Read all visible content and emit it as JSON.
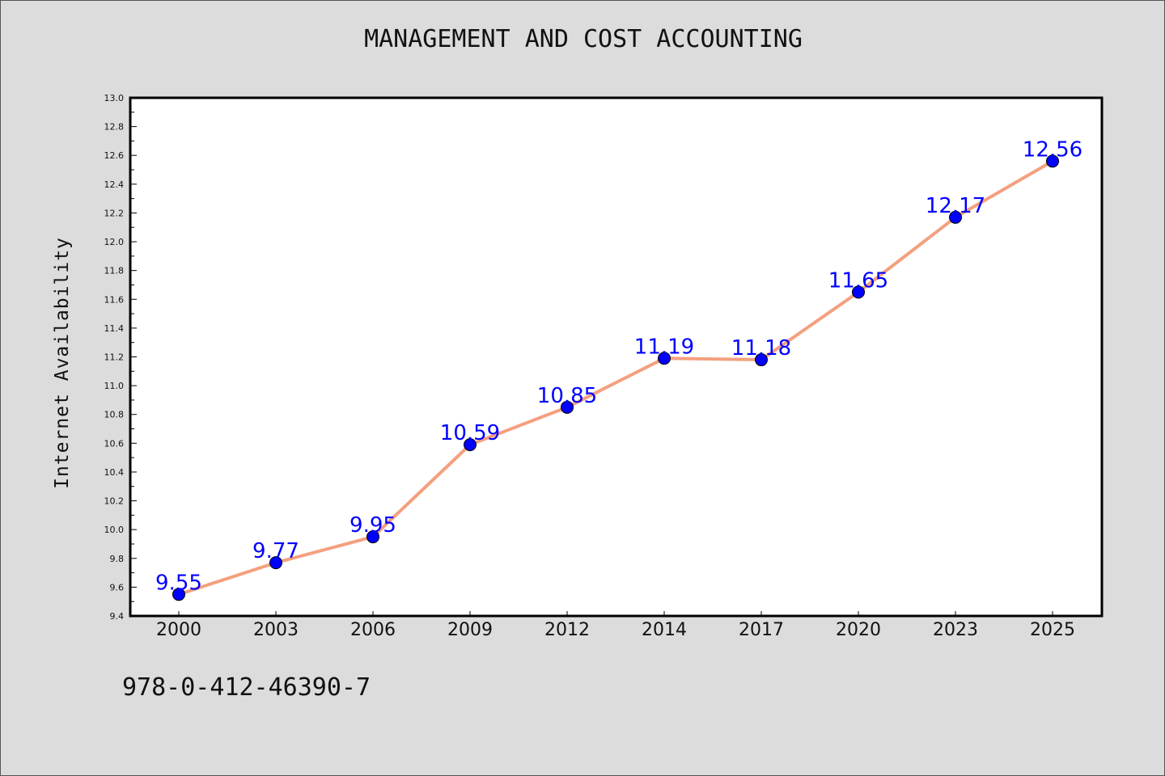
{
  "chart_data": {
    "type": "line",
    "title": "MANAGEMENT AND COST ACCOUNTING",
    "ylabel": "Internet Availability",
    "xlabel": "",
    "categories": [
      "2000",
      "2003",
      "2006",
      "2009",
      "2012",
      "2014",
      "2017",
      "2020",
      "2023",
      "2025"
    ],
    "series": [
      {
        "values": [
          9.55,
          9.77,
          9.95,
          10.59,
          10.85,
          11.19,
          11.18,
          11.65,
          12.17,
          12.56
        ],
        "labels": [
          "9.55",
          "9.77",
          "9.95",
          "10.59",
          "10.85",
          "11.19",
          "11.18",
          "11.65",
          "12.17",
          "12.56"
        ]
      }
    ],
    "ylim": [
      9.4,
      13.0
    ],
    "yticks": [
      "9.4",
      "9.6",
      "9.8",
      "10.0",
      "10.2",
      "10.4",
      "10.6",
      "10.8",
      "11.0",
      "11.2",
      "11.4",
      "11.6",
      "11.8",
      "12.0",
      "12.2",
      "12.4",
      "12.6",
      "12.8",
      "13.0"
    ],
    "line_color": "#f4a07f",
    "marker_color": "#0000ff",
    "label_color": "#0000ff",
    "grid": false,
    "legend": "none"
  },
  "footer": {
    "isbn": "978-0-412-46390-7"
  }
}
